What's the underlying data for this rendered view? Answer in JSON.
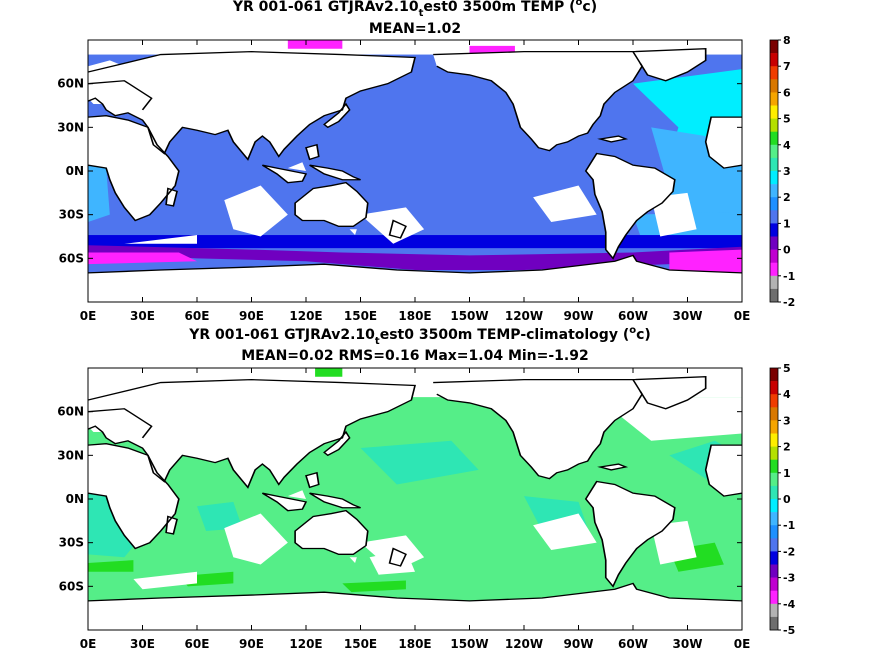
{
  "chart_data": [
    {
      "type": "heatmap",
      "title_main": "YR 001-061 GTJRAv2.10",
      "title_sub": "t",
      "title_rest": "est0 3500m TEMP (",
      "title_sup": "o",
      "title_end": "c)",
      "subtitle": "MEAN=1.02",
      "xticks": [
        "0E",
        "30E",
        "60E",
        "90E",
        "120E",
        "150E",
        "180E",
        "150W",
        "120W",
        "90W",
        "60W",
        "30W",
        "0E"
      ],
      "yticks": [
        "60N",
        "30N",
        "0N",
        "30S",
        "60S"
      ],
      "colorbar": {
        "labels": [
          "8",
          "7",
          "6",
          "5",
          "4",
          "3",
          "2",
          "1",
          "0",
          "-1",
          "-2"
        ],
        "colors": [
          "#7a0000",
          "#c80000",
          "#f03c00",
          "#d97800",
          "#f5a500",
          "#ffee00",
          "#b4e000",
          "#22dd22",
          "#55ee88",
          "#2ee6b4",
          "#00eeff",
          "#3fb5ff",
          "#1e90ff",
          "#4f75ee",
          "#0000e0",
          "#7000c0",
          "#c000d0",
          "#ff22ff",
          "#b3b3b3",
          "#6e6e6e"
        ]
      }
    },
    {
      "type": "heatmap",
      "title_main": "YR 001-061 GTJRAv2.10",
      "title_sub": "t",
      "title_rest": "est0 3500m TEMP-climatology (",
      "title_sup": "o",
      "title_end": "c)",
      "subtitle": "MEAN=0.02   RMS=0.16   Max=1.04   Min=-1.92",
      "xticks": [
        "0E",
        "30E",
        "60E",
        "90E",
        "120E",
        "150E",
        "180E",
        "150W",
        "120W",
        "90W",
        "60W",
        "30W",
        "0E"
      ],
      "yticks": [
        "60N",
        "30N",
        "0N",
        "30S",
        "60S"
      ],
      "colorbar": {
        "labels": [
          "5",
          "4",
          "3",
          "2",
          "1",
          "0",
          "-1",
          "-2",
          "-3",
          "-4",
          "-5"
        ],
        "colors": [
          "#7a0000",
          "#c80000",
          "#f03c00",
          "#d97800",
          "#f5a500",
          "#ffee00",
          "#b4e000",
          "#22dd22",
          "#55ee88",
          "#2ee6b4",
          "#00eeff",
          "#3fb5ff",
          "#1e90ff",
          "#4f75ee",
          "#0000e0",
          "#7000c0",
          "#c000d0",
          "#ff22ff",
          "#b3b3b3",
          "#6e6e6e"
        ]
      }
    }
  ]
}
